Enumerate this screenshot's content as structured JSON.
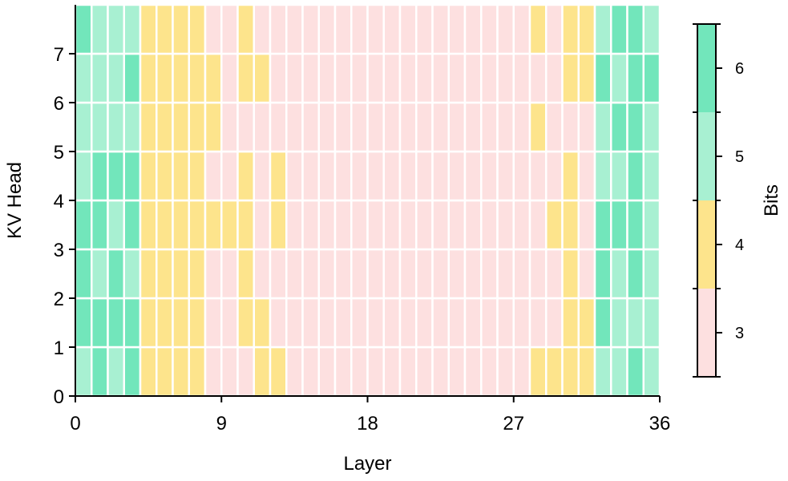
{
  "chart_data": {
    "type": "heatmap",
    "title": "",
    "xlabel": "Layer",
    "ylabel": "KV Head",
    "xlim": [
      0,
      36
    ],
    "ylim": [
      0,
      8
    ],
    "xticks": [
      0,
      9,
      18,
      27,
      36
    ],
    "yticks": [
      0,
      1,
      2,
      3,
      4,
      5,
      6,
      7
    ],
    "colorbar": {
      "label": "Bits",
      "ticks": [
        3,
        4,
        5,
        6
      ],
      "colors": {
        "3": "#fde0e0",
        "4": "#fde48c",
        "5": "#a8f0d2",
        "6": "#72e6bb"
      }
    },
    "rows_by_head": [
      [
        5,
        6,
        5,
        6,
        4,
        4,
        4,
        4,
        3,
        3,
        3,
        4,
        4,
        3,
        3,
        3,
        3,
        3,
        3,
        3,
        3,
        3,
        3,
        3,
        3,
        3,
        3,
        3,
        4,
        4,
        4,
        4,
        5,
        5,
        6,
        5
      ],
      [
        6,
        6,
        6,
        6,
        4,
        4,
        4,
        4,
        3,
        3,
        4,
        4,
        3,
        3,
        3,
        3,
        3,
        3,
        3,
        3,
        3,
        3,
        3,
        3,
        3,
        3,
        3,
        3,
        3,
        3,
        4,
        4,
        6,
        5,
        5,
        5
      ],
      [
        6,
        5,
        6,
        5,
        4,
        4,
        4,
        4,
        3,
        3,
        4,
        3,
        3,
        3,
        3,
        3,
        3,
        3,
        3,
        3,
        3,
        3,
        3,
        3,
        3,
        3,
        3,
        3,
        3,
        3,
        4,
        3,
        6,
        5,
        6,
        5
      ],
      [
        6,
        6,
        5,
        6,
        4,
        4,
        4,
        4,
        4,
        4,
        4,
        3,
        4,
        3,
        3,
        3,
        3,
        3,
        3,
        3,
        3,
        3,
        3,
        3,
        3,
        3,
        3,
        3,
        3,
        4,
        4,
        3,
        6,
        6,
        6,
        5
      ],
      [
        5,
        6,
        6,
        6,
        4,
        4,
        4,
        4,
        3,
        3,
        4,
        3,
        4,
        3,
        3,
        3,
        3,
        3,
        3,
        3,
        3,
        3,
        3,
        3,
        3,
        3,
        3,
        3,
        3,
        3,
        4,
        3,
        5,
        5,
        6,
        5
      ],
      [
        5,
        5,
        5,
        5,
        4,
        4,
        4,
        4,
        4,
        3,
        3,
        3,
        3,
        3,
        3,
        3,
        3,
        3,
        3,
        3,
        3,
        3,
        3,
        3,
        3,
        3,
        3,
        3,
        4,
        3,
        3,
        3,
        5,
        6,
        6,
        5
      ],
      [
        5,
        5,
        5,
        6,
        4,
        4,
        4,
        4,
        4,
        3,
        4,
        4,
        3,
        3,
        3,
        3,
        3,
        3,
        3,
        3,
        3,
        3,
        3,
        3,
        3,
        3,
        3,
        3,
        3,
        3,
        4,
        4,
        6,
        5,
        6,
        6
      ],
      [
        6,
        5,
        5,
        5,
        4,
        4,
        4,
        4,
        3,
        3,
        4,
        3,
        3,
        3,
        3,
        3,
        3,
        3,
        3,
        3,
        3,
        3,
        3,
        3,
        3,
        3,
        3,
        3,
        4,
        3,
        4,
        4,
        5,
        6,
        6,
        5
      ]
    ]
  }
}
